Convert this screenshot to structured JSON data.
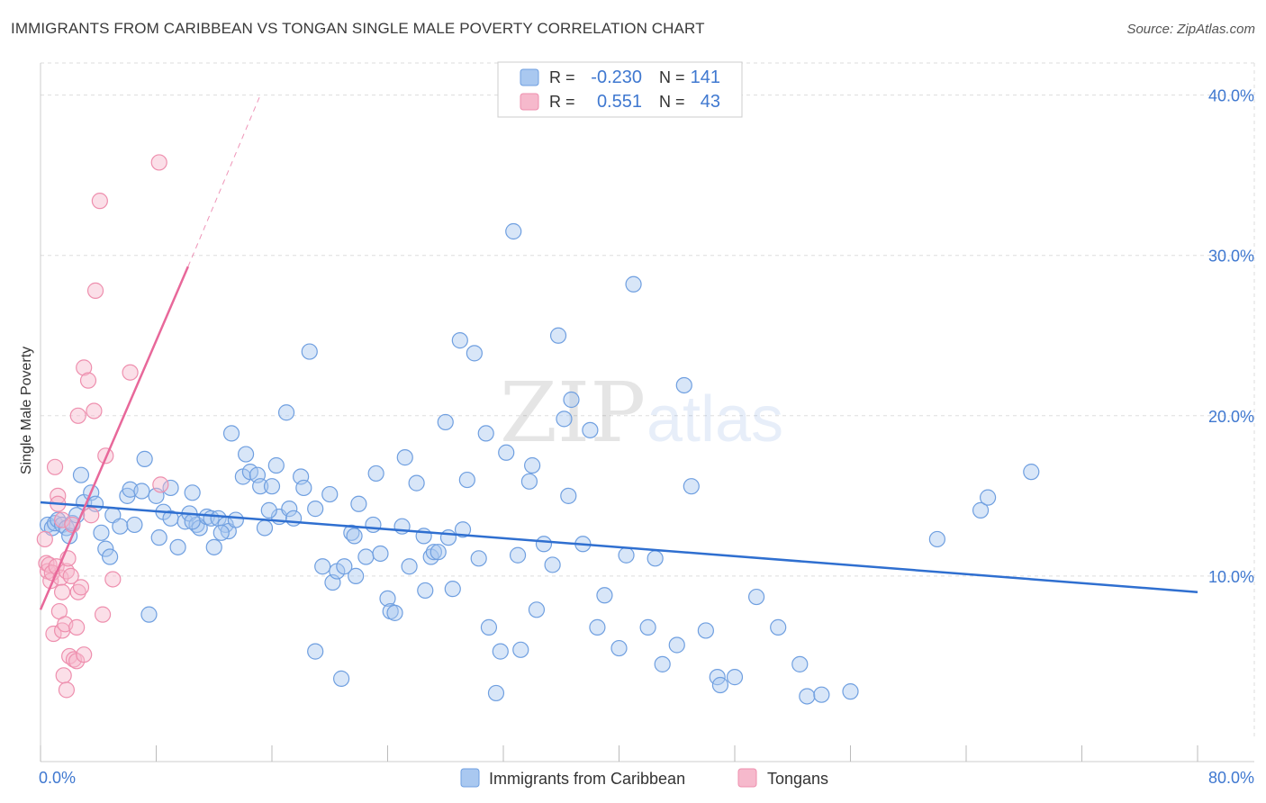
{
  "title": "IMMIGRANTS FROM CARIBBEAN VS TONGAN SINGLE MALE POVERTY CORRELATION CHART",
  "source": "Source: ZipAtlas.com",
  "watermark": {
    "zip": "ZIP",
    "atlas": "atlas"
  },
  "colors": {
    "blue_fill": "#a9c8f0",
    "blue_stroke": "#6f9fe0",
    "blue_line": "#2f6fd0",
    "pink_fill": "#f6b9cc",
    "pink_stroke": "#ee8fae",
    "pink_line": "#e8689a",
    "axis_text": "#3f78d0",
    "grid": "#dddddd"
  },
  "chart_data": {
    "type": "scatter",
    "title": "IMMIGRANTS FROM CARIBBEAN VS TONGAN SINGLE MALE POVERTY CORRELATION CHART",
    "ylabel": "Single Male Poverty",
    "xlim": [
      0,
      80
    ],
    "ylim": [
      0,
      42
    ],
    "x_tick_labels": [
      {
        "value": 0,
        "label": "0.0%"
      },
      {
        "value": 80,
        "label": "80.0%"
      }
    ],
    "y_tick_labels": [
      {
        "value": 10,
        "label": "10.0%"
      },
      {
        "value": 20,
        "label": "20.0%"
      },
      {
        "value": 30,
        "label": "30.0%"
      },
      {
        "value": 40,
        "label": "40.0%"
      }
    ],
    "legend_stats": [
      {
        "r_label": "R =",
        "r_value": "-0.230",
        "n_label": "N =",
        "n_value": "141"
      },
      {
        "r_label": "R =",
        "r_value": "0.551",
        "n_label": "N =",
        "n_value": "43"
      }
    ],
    "series": [
      {
        "name": "Immigrants from Caribbean",
        "color": "blue",
        "trend": {
          "x": [
            0,
            80
          ],
          "y": [
            14.6,
            9.0
          ]
        },
        "points": [
          [
            0.5,
            13.2
          ],
          [
            0.8,
            13.0
          ],
          [
            1.0,
            13.3
          ],
          [
            1.2,
            13.5
          ],
          [
            1.5,
            13.2
          ],
          [
            1.8,
            13.0
          ],
          [
            2.0,
            12.5
          ],
          [
            2.2,
            13.3
          ],
          [
            2.5,
            13.8
          ],
          [
            2.8,
            16.3
          ],
          [
            3.0,
            14.6
          ],
          [
            3.5,
            15.2
          ],
          [
            3.8,
            14.5
          ],
          [
            4.2,
            12.7
          ],
          [
            4.5,
            11.7
          ],
          [
            4.8,
            11.2
          ],
          [
            5.0,
            13.8
          ],
          [
            5.5,
            13.1
          ],
          [
            6.0,
            15.0
          ],
          [
            6.2,
            15.4
          ],
          [
            6.5,
            13.2
          ],
          [
            7.0,
            15.3
          ],
          [
            7.2,
            17.3
          ],
          [
            7.5,
            7.6
          ],
          [
            8.0,
            15.0
          ],
          [
            8.2,
            12.4
          ],
          [
            8.5,
            14.0
          ],
          [
            9.0,
            13.6
          ],
          [
            9.0,
            15.5
          ],
          [
            9.5,
            11.8
          ],
          [
            10.0,
            13.4
          ],
          [
            10.3,
            13.9
          ],
          [
            10.5,
            15.2
          ],
          [
            10.8,
            13.2
          ],
          [
            11.0,
            13.0
          ],
          [
            11.5,
            13.7
          ],
          [
            11.8,
            13.6
          ],
          [
            12.0,
            11.8
          ],
          [
            12.3,
            13.6
          ],
          [
            12.8,
            13.2
          ],
          [
            13.0,
            12.8
          ],
          [
            13.2,
            18.9
          ],
          [
            13.5,
            13.5
          ],
          [
            14.0,
            16.2
          ],
          [
            14.2,
            17.6
          ],
          [
            14.5,
            16.5
          ],
          [
            15.0,
            16.3
          ],
          [
            15.2,
            15.6
          ],
          [
            15.5,
            13.0
          ],
          [
            16.0,
            15.6
          ],
          [
            16.3,
            16.9
          ],
          [
            16.5,
            13.7
          ],
          [
            17.0,
            20.2
          ],
          [
            17.2,
            14.2
          ],
          [
            17.5,
            13.6
          ],
          [
            18.0,
            16.2
          ],
          [
            18.2,
            15.5
          ],
          [
            18.6,
            24.0
          ],
          [
            19.0,
            14.2
          ],
          [
            19.5,
            10.6
          ],
          [
            20.0,
            15.1
          ],
          [
            20.2,
            9.6
          ],
          [
            20.5,
            10.3
          ],
          [
            21.0,
            10.6
          ],
          [
            21.5,
            12.7
          ],
          [
            21.8,
            10.0
          ],
          [
            22.0,
            14.5
          ],
          [
            22.5,
            11.2
          ],
          [
            23.0,
            13.2
          ],
          [
            23.2,
            16.4
          ],
          [
            23.5,
            11.4
          ],
          [
            24.0,
            8.6
          ],
          [
            24.2,
            7.8
          ],
          [
            24.5,
            7.7
          ],
          [
            25.0,
            13.1
          ],
          [
            25.2,
            17.4
          ],
          [
            25.5,
            10.6
          ],
          [
            26.0,
            15.8
          ],
          [
            26.5,
            12.5
          ],
          [
            27.0,
            11.2
          ],
          [
            27.2,
            11.5
          ],
          [
            27.5,
            11.5
          ],
          [
            28.0,
            19.6
          ],
          [
            28.2,
            12.4
          ],
          [
            28.5,
            9.2
          ],
          [
            29.0,
            24.7
          ],
          [
            29.2,
            12.9
          ],
          [
            29.5,
            16.0
          ],
          [
            30.0,
            23.9
          ],
          [
            30.3,
            11.1
          ],
          [
            30.8,
            18.9
          ],
          [
            31.0,
            6.8
          ],
          [
            31.5,
            2.7
          ],
          [
            31.8,
            5.3
          ],
          [
            32.2,
            17.7
          ],
          [
            32.7,
            31.5
          ],
          [
            33.0,
            11.3
          ],
          [
            33.8,
            15.9
          ],
          [
            34.0,
            16.9
          ],
          [
            34.3,
            7.9
          ],
          [
            34.8,
            12.0
          ],
          [
            35.4,
            10.7
          ],
          [
            35.8,
            25.0
          ],
          [
            36.2,
            19.8
          ],
          [
            36.5,
            15.0
          ],
          [
            36.7,
            21.0
          ],
          [
            37.5,
            12.0
          ],
          [
            38.0,
            19.1
          ],
          [
            38.5,
            6.8
          ],
          [
            39.0,
            8.8
          ],
          [
            40.0,
            5.5
          ],
          [
            40.5,
            11.3
          ],
          [
            41.0,
            28.2
          ],
          [
            42.0,
            6.8
          ],
          [
            42.5,
            11.1
          ],
          [
            43.0,
            4.5
          ],
          [
            44.0,
            5.7
          ],
          [
            44.5,
            21.9
          ],
          [
            45.0,
            15.6
          ],
          [
            46.0,
            6.6
          ],
          [
            46.8,
            3.7
          ],
          [
            47.0,
            3.2
          ],
          [
            48.0,
            3.7
          ],
          [
            49.5,
            8.7
          ],
          [
            51.0,
            6.8
          ],
          [
            52.5,
            4.5
          ],
          [
            53.0,
            2.5
          ],
          [
            54.0,
            2.6
          ],
          [
            56.0,
            2.8
          ],
          [
            62.0,
            12.3
          ],
          [
            65.0,
            14.1
          ],
          [
            65.5,
            14.9
          ],
          [
            68.5,
            16.5
          ],
          [
            10.5,
            13.4
          ],
          [
            12.5,
            12.7
          ],
          [
            21.7,
            12.5
          ],
          [
            15.8,
            14.1
          ],
          [
            26.6,
            9.1
          ],
          [
            33.2,
            5.4
          ],
          [
            20.8,
            3.6
          ],
          [
            19.0,
            5.3
          ]
        ]
      },
      {
        "name": "Tongans",
        "color": "pink",
        "trend": {
          "x": [
            0,
            10.2
          ],
          "y": [
            7.9,
            29.3
          ]
        },
        "trend_dashed": {
          "x": [
            10.2,
            15.2
          ],
          "y": [
            29.3,
            40.0
          ]
        },
        "points": [
          [
            0.3,
            12.3
          ],
          [
            0.4,
            10.8
          ],
          [
            0.5,
            10.3
          ],
          [
            0.6,
            10.7
          ],
          [
            0.7,
            9.7
          ],
          [
            0.8,
            10.2
          ],
          [
            0.9,
            6.4
          ],
          [
            1.0,
            16.8
          ],
          [
            1.1,
            10.6
          ],
          [
            1.2,
            15.0
          ],
          [
            1.2,
            14.5
          ],
          [
            1.3,
            7.8
          ],
          [
            1.4,
            9.9
          ],
          [
            1.5,
            9.0
          ],
          [
            1.5,
            6.6
          ],
          [
            1.6,
            3.8
          ],
          [
            1.7,
            7.0
          ],
          [
            1.8,
            2.9
          ],
          [
            1.8,
            10.3
          ],
          [
            1.9,
            11.1
          ],
          [
            2.0,
            5.0
          ],
          [
            2.1,
            10.0
          ],
          [
            2.3,
            4.8
          ],
          [
            2.5,
            4.7
          ],
          [
            2.5,
            6.8
          ],
          [
            2.6,
            20.0
          ],
          [
            2.6,
            9.0
          ],
          [
            2.8,
            9.3
          ],
          [
            3.0,
            23.0
          ],
          [
            3.0,
            5.1
          ],
          [
            3.3,
            22.2
          ],
          [
            3.5,
            13.8
          ],
          [
            3.7,
            20.3
          ],
          [
            3.8,
            27.8
          ],
          [
            4.1,
            33.4
          ],
          [
            4.3,
            7.6
          ],
          [
            4.5,
            17.5
          ],
          [
            5.0,
            9.8
          ],
          [
            6.2,
            22.7
          ],
          [
            8.2,
            35.8
          ],
          [
            8.3,
            15.7
          ],
          [
            1.5,
            13.5
          ],
          [
            2.2,
            13.2
          ]
        ]
      }
    ]
  }
}
